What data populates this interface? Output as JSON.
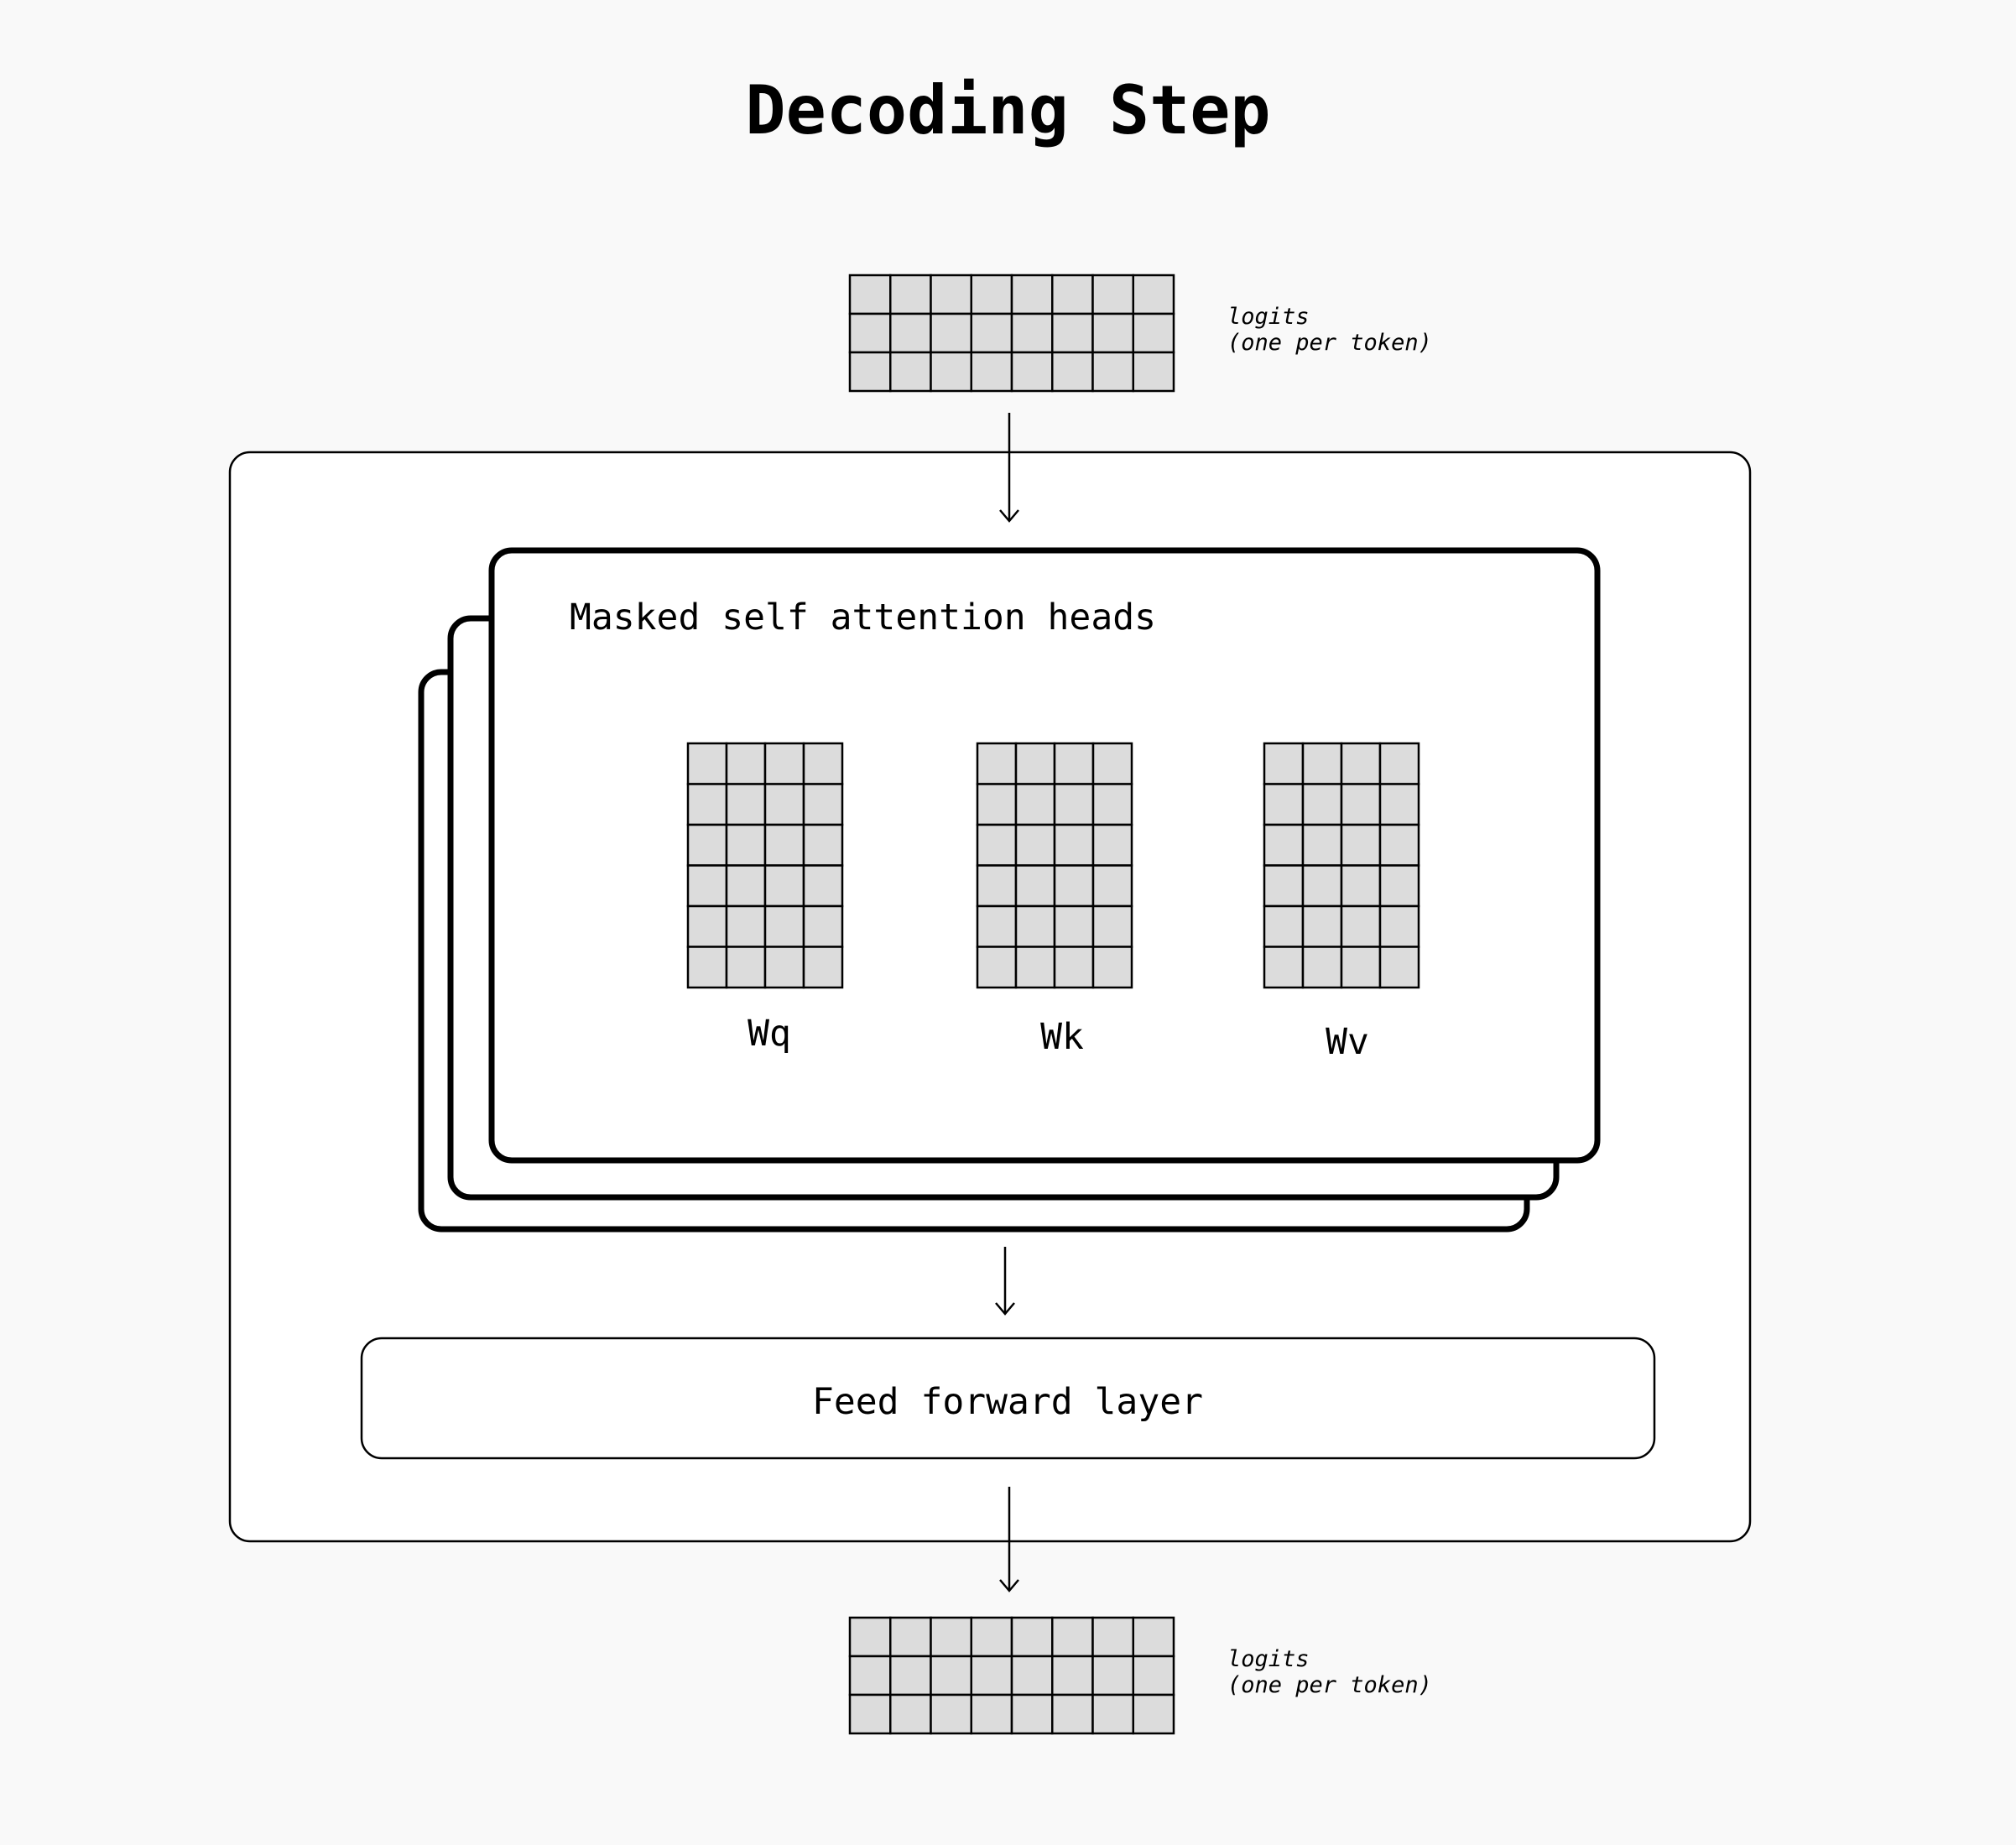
{
  "diagram": {
    "title": "Decoding Step",
    "output_logits": {
      "label_line1": "logits",
      "label_line2": "(one per token)"
    },
    "input_logits": {
      "label_line1": "logits",
      "label_line2": "(one per token)"
    },
    "attention": {
      "label": "Masked self attention heads",
      "weights": [
        {
          "name": "Wq"
        },
        {
          "name": "Wk"
        },
        {
          "name": "Wv"
        }
      ]
    },
    "feed_forward": {
      "label": "Feed forward layer"
    }
  },
  "colors": {
    "background": "#f9f9f9",
    "panel": "#ffffff",
    "matrix_cell": "#dcdcdc",
    "stroke": "#000000"
  }
}
